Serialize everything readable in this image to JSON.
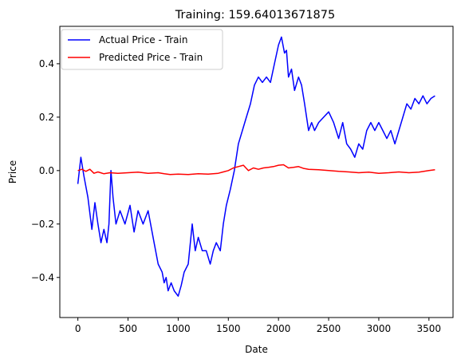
{
  "chart_data": {
    "type": "line",
    "title": "Training: 159.64013671875",
    "xlabel": "Date",
    "ylabel": "Price",
    "xlim": [
      -180,
      3740
    ],
    "ylim": [
      -0.55,
      0.54
    ],
    "xticks": [
      0,
      500,
      1000,
      1500,
      2000,
      2500,
      3000,
      3500
    ],
    "yticks": [
      -0.4,
      -0.2,
      0.0,
      0.2,
      0.4
    ],
    "ytick_labels": [
      "−0.4",
      "−0.2",
      "0.0",
      "0.2",
      "0.4"
    ],
    "grid": false,
    "legend_position": "upper-left",
    "series": [
      {
        "name": "Actual Price - Train",
        "color": "#0000ff",
        "x": [
          0,
          30,
          60,
          100,
          140,
          170,
          200,
          230,
          260,
          290,
          310,
          330,
          350,
          380,
          420,
          470,
          520,
          560,
          600,
          650,
          700,
          760,
          800,
          840,
          860,
          880,
          900,
          930,
          960,
          1000,
          1030,
          1060,
          1100,
          1140,
          1170,
          1200,
          1240,
          1280,
          1320,
          1350,
          1380,
          1420,
          1450,
          1480,
          1520,
          1560,
          1600,
          1640,
          1680,
          1720,
          1760,
          1800,
          1840,
          1880,
          1920,
          1960,
          2000,
          2030,
          2060,
          2080,
          2100,
          2130,
          2160,
          2200,
          2230,
          2260,
          2280,
          2300,
          2330,
          2360,
          2400,
          2450,
          2500,
          2550,
          2600,
          2640,
          2680,
          2720,
          2760,
          2800,
          2840,
          2880,
          2920,
          2960,
          3000,
          3040,
          3080,
          3120,
          3160,
          3200,
          3240,
          3280,
          3320,
          3360,
          3400,
          3440,
          3480,
          3520,
          3560
        ],
        "y": [
          -0.05,
          0.05,
          -0.02,
          -0.1,
          -0.22,
          -0.12,
          -0.2,
          -0.27,
          -0.22,
          -0.27,
          -0.2,
          0.0,
          -0.1,
          -0.2,
          -0.15,
          -0.2,
          -0.13,
          -0.23,
          -0.15,
          -0.2,
          -0.15,
          -0.27,
          -0.35,
          -0.38,
          -0.42,
          -0.4,
          -0.45,
          -0.42,
          -0.45,
          -0.47,
          -0.43,
          -0.38,
          -0.35,
          -0.2,
          -0.3,
          -0.25,
          -0.3,
          -0.3,
          -0.35,
          -0.3,
          -0.27,
          -0.3,
          -0.2,
          -0.13,
          -0.07,
          0.0,
          0.1,
          0.15,
          0.2,
          0.25,
          0.32,
          0.35,
          0.33,
          0.35,
          0.33,
          0.4,
          0.47,
          0.5,
          0.44,
          0.45,
          0.35,
          0.38,
          0.3,
          0.35,
          0.32,
          0.25,
          0.2,
          0.15,
          0.18,
          0.15,
          0.18,
          0.2,
          0.22,
          0.18,
          0.12,
          0.18,
          0.1,
          0.08,
          0.05,
          0.1,
          0.08,
          0.15,
          0.18,
          0.15,
          0.18,
          0.15,
          0.12,
          0.15,
          0.1,
          0.15,
          0.2,
          0.25,
          0.23,
          0.27,
          0.25,
          0.28,
          0.25,
          0.27,
          0.28
        ]
      },
      {
        "name": "Predicted Price - Train",
        "color": "#ff0000",
        "x": [
          0,
          40,
          80,
          120,
          160,
          200,
          260,
          320,
          400,
          500,
          600,
          700,
          800,
          860,
          920,
          1000,
          1100,
          1200,
          1300,
          1400,
          1450,
          1500,
          1550,
          1600,
          1650,
          1700,
          1750,
          1800,
          1850,
          1900,
          1950,
          2000,
          2050,
          2100,
          2150,
          2200,
          2250,
          2300,
          2400,
          2500,
          2600,
          2700,
          2800,
          2900,
          3000,
          3100,
          3200,
          3300,
          3400,
          3500,
          3560
        ],
        "y": [
          0.0,
          0.005,
          -0.003,
          0.005,
          -0.01,
          -0.005,
          -0.012,
          -0.008,
          -0.01,
          -0.008,
          -0.006,
          -0.01,
          -0.008,
          -0.012,
          -0.015,
          -0.013,
          -0.015,
          -0.012,
          -0.013,
          -0.01,
          -0.005,
          0.0,
          0.01,
          0.015,
          0.02,
          0.0,
          0.01,
          0.005,
          0.01,
          0.012,
          0.015,
          0.02,
          0.022,
          0.01,
          0.012,
          0.015,
          0.008,
          0.005,
          0.003,
          0.0,
          -0.003,
          -0.005,
          -0.008,
          -0.006,
          -0.01,
          -0.008,
          -0.005,
          -0.008,
          -0.006,
          0.0,
          0.003
        ]
      }
    ]
  }
}
